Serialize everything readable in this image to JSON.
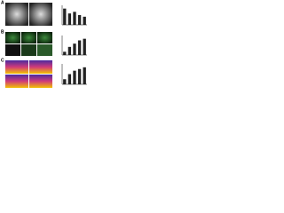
{
  "panels": [
    "A",
    "B",
    "C"
  ],
  "chart_data": [
    {
      "type": "bar",
      "categories": [
        null,
        null,
        null,
        null,
        null
      ],
      "values": [
        1.0,
        0.7,
        0.8,
        0.6,
        0.5
      ],
      "color": "#222222",
      "ylim": [
        0,
        1.2
      ]
    },
    {
      "type": "bar",
      "categories": [
        null,
        null,
        null,
        null,
        null
      ],
      "values": [
        0.2,
        0.5,
        0.7,
        0.9,
        1.0
      ],
      "color": "#222222",
      "ylim": [
        0,
        1.2
      ]
    },
    {
      "type": "bar",
      "categories": [
        null,
        null,
        null,
        null,
        null
      ],
      "values": [
        0.3,
        0.6,
        0.8,
        0.9,
        1.0
      ],
      "color": "#222222",
      "ylim": [
        0,
        1.2
      ]
    }
  ]
}
